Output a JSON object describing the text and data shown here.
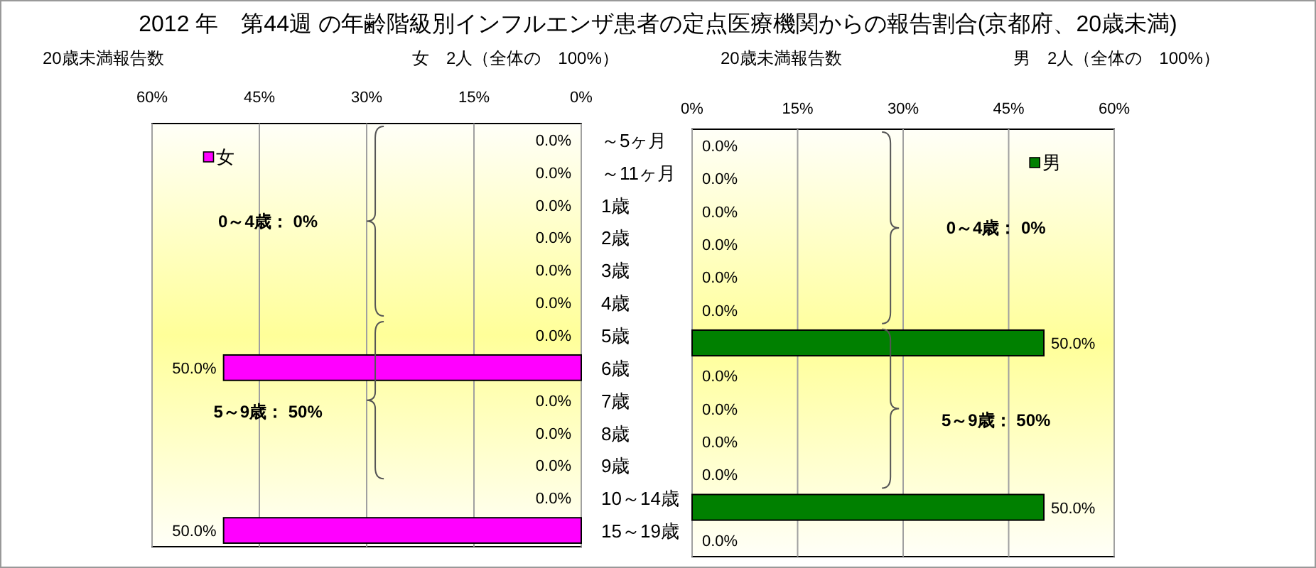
{
  "chart_data": [
    {
      "type": "bar",
      "orientation": "horizontal",
      "title": "2012 年　第44週 の年齢階級別インフルエンザ患者の定点医療機関からの報告割合(京都府、20歳未満)",
      "subtitle": "女　2人（全体の　100%）",
      "categories": [
        "～5ヶ月",
        "～11ヶ月",
        "1歳",
        "2歳",
        "3歳",
        "4歳",
        "5歳",
        "6歳",
        "7歳",
        "8歳",
        "9歳",
        "10～14歳",
        "15～19歳"
      ],
      "series": [
        {
          "name": "女",
          "color": "#ff00ff",
          "values": [
            0,
            0,
            0,
            0,
            0,
            0,
            0,
            50,
            0,
            0,
            0,
            0,
            50
          ],
          "value_labels": [
            "0.0%",
            "0.0%",
            "0.0%",
            "0.0%",
            "0.0%",
            "0.0%",
            "0.0%",
            "50.0%",
            "0.0%",
            "0.0%",
            "0.0%",
            "0.0%",
            "50.0%"
          ]
        }
      ],
      "xlim": [
        60,
        0
      ],
      "xticks": [
        {
          "value": 60,
          "label": "60%"
        },
        {
          "value": 45,
          "label": "45%"
        },
        {
          "value": 30,
          "label": "30%"
        },
        {
          "value": 15,
          "label": "15%"
        },
        {
          "value": 0,
          "label": "0%"
        }
      ],
      "grid": "x",
      "legend": "top left",
      "annotations": [
        "20歳未満報告数",
        "0～4歳： 0%",
        "5～9歳： 50%"
      ]
    },
    {
      "type": "bar",
      "orientation": "horizontal",
      "subtitle": "男　2人（全体の　100%）",
      "categories": [
        null,
        null,
        null,
        null,
        null,
        null,
        null,
        null,
        null,
        null,
        null,
        null,
        null
      ],
      "series": [
        {
          "name": "男",
          "color": "#008000",
          "values": [
            0,
            0,
            0,
            0,
            0,
            0,
            50,
            0,
            0,
            0,
            0,
            50,
            0
          ],
          "value_labels": [
            "0.0%",
            "0.0%",
            "0.0%",
            "0.0%",
            "0.0%",
            "0.0%",
            "50.0%",
            "0.0%",
            "0.0%",
            "0.0%",
            "0.0%",
            "50.0%",
            "0.0%"
          ]
        }
      ],
      "xlim": [
        0,
        60
      ],
      "xticks": [
        {
          "value": 0,
          "label": "0%"
        },
        {
          "value": 15,
          "label": "15%"
        },
        {
          "value": 30,
          "label": "30%"
        },
        {
          "value": 45,
          "label": "45%"
        },
        {
          "value": 60,
          "label": "60%"
        }
      ],
      "grid": "x",
      "legend": "top right",
      "tick_labels": "x",
      "annotations": [
        "20歳未満報告数",
        "0～4歳： 0%",
        "5～9歳： 50%"
      ]
    }
  ]
}
